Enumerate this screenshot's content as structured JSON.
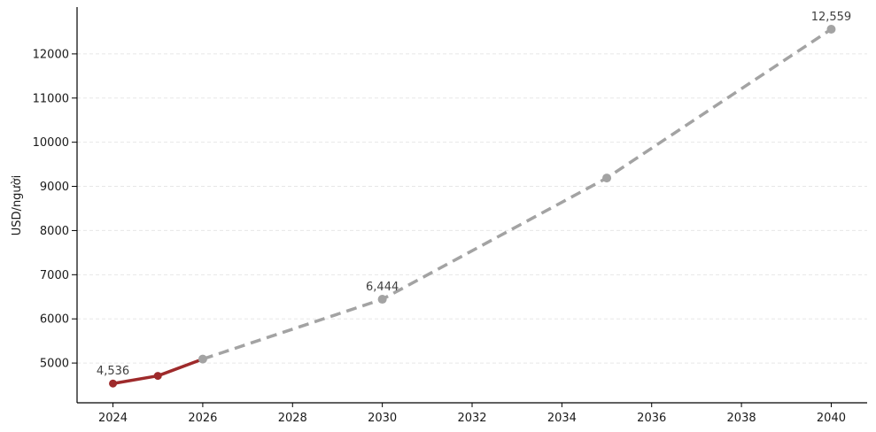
{
  "chart_data": {
    "type": "line",
    "title": "",
    "xlabel": "",
    "ylabel": "USD/người",
    "xlim": [
      2023.2,
      2040.8
    ],
    "ylim": [
      4100,
      13060
    ],
    "xticks": [
      2024,
      2026,
      2028,
      2030,
      2032,
      2034,
      2036,
      2038,
      2040
    ],
    "yticks": [
      5000,
      6000,
      7000,
      8000,
      9000,
      10000,
      11000,
      12000
    ],
    "grid": "horizontal-dashed",
    "legend_position": "none",
    "series": [
      {
        "name": "solid-segment",
        "line_style": "solid",
        "color": "#9e2a2b",
        "x": [
          2024,
          2025,
          2026
        ],
        "values": [
          4536,
          4710,
          5090
        ],
        "marker_colors": [
          "#9e2a2b",
          "#9e2a2b",
          "#a3a3a3"
        ]
      },
      {
        "name": "dashed-forecast-segment",
        "line_style": "dashed",
        "color": "#a3a3a3",
        "x": [
          2026,
          2030,
          2035,
          2040
        ],
        "values": [
          5090,
          6444,
          9190,
          12559
        ],
        "marker_colors": [
          "#a3a3a3",
          "#a3a3a3",
          "#a3a3a3",
          "#a3a3a3"
        ]
      }
    ],
    "annotations": [
      {
        "x": 2024,
        "y": 4536,
        "label": "4,536"
      },
      {
        "x": 2030,
        "y": 6444,
        "label": "6,444"
      },
      {
        "x": 2040,
        "y": 12559,
        "label": "12,559"
      }
    ],
    "colors": {
      "solid_line": "#9e2a2b",
      "dashed_line": "#a3a3a3",
      "gridline": "#e7e7e7",
      "spine": "#000000",
      "tick_text": "#1a1a1a",
      "annotation_text": "#404040",
      "background": "#ffffff"
    }
  }
}
